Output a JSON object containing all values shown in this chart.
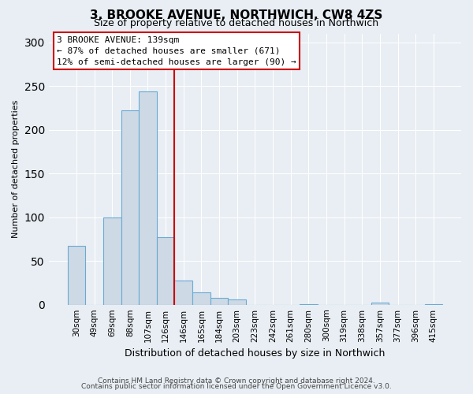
{
  "title": "3, BROOKE AVENUE, NORTHWICH, CW8 4ZS",
  "subtitle": "Size of property relative to detached houses in Northwich",
  "xlabel": "Distribution of detached houses by size in Northwich",
  "ylabel": "Number of detached properties",
  "bin_labels": [
    "30sqm",
    "49sqm",
    "69sqm",
    "88sqm",
    "107sqm",
    "126sqm",
    "146sqm",
    "165sqm",
    "184sqm",
    "203sqm",
    "223sqm",
    "242sqm",
    "261sqm",
    "280sqm",
    "300sqm",
    "319sqm",
    "338sqm",
    "357sqm",
    "377sqm",
    "396sqm",
    "415sqm"
  ],
  "bar_values": [
    67,
    0,
    100,
    222,
    244,
    77,
    28,
    14,
    8,
    6,
    0,
    0,
    0,
    1,
    0,
    0,
    0,
    2,
    0,
    0,
    1
  ],
  "bar_color": "#cdd9e5",
  "bar_edge_color": "#6aaad4",
  "ylim": [
    0,
    310
  ],
  "yticks": [
    0,
    50,
    100,
    150,
    200,
    250,
    300
  ],
  "vline_x_index": 5,
  "annotation_title": "3 BROOKE AVENUE: 139sqm",
  "annotation_line1": "← 87% of detached houses are smaller (671)",
  "annotation_line2": "12% of semi-detached houses are larger (90) →",
  "annotation_box_color": "#ffffff",
  "annotation_box_edge": "#cc0000",
  "vline_color": "#cc0000",
  "footer1": "Contains HM Land Registry data © Crown copyright and database right 2024.",
  "footer2": "Contains public sector information licensed under the Open Government Licence v3.0.",
  "background_color": "#e8eef4",
  "plot_bg_color": "#e8eef4",
  "grid_color": "#ffffff",
  "title_fontsize": 11,
  "subtitle_fontsize": 9,
  "ylabel_fontsize": 8,
  "xlabel_fontsize": 9,
  "tick_fontsize": 7.5,
  "footer_fontsize": 6.5,
  "annotation_fontsize": 8
}
